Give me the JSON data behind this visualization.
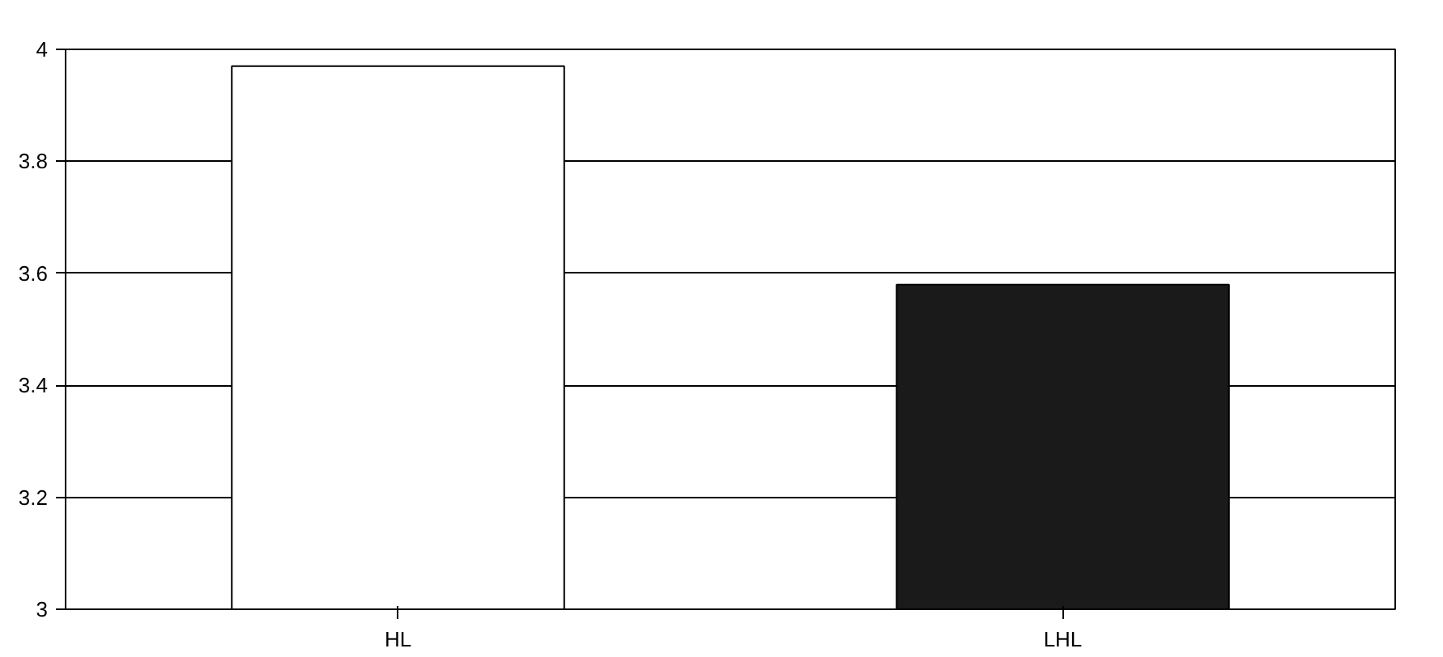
{
  "chart_data": {
    "type": "bar",
    "categories": [
      "HL",
      "LHL"
    ],
    "values": [
      3.97,
      3.58
    ],
    "colors": [
      "#ffffff",
      "#1a1a1a"
    ],
    "ylim": [
      3,
      4
    ],
    "yticks": [
      3,
      3.2,
      3.4,
      3.6,
      3.8,
      4
    ],
    "grid": "y"
  }
}
